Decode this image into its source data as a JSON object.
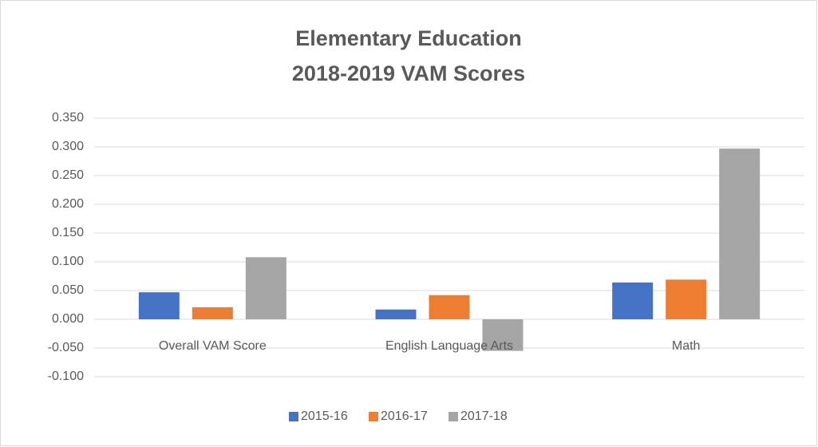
{
  "chart_data": {
    "type": "bar",
    "title": [
      "Elementary Education",
      "2018-2019 VAM Scores"
    ],
    "categories": [
      "Overall VAM Score",
      "English Language Arts",
      "Math"
    ],
    "series": [
      {
        "name": "2015-16",
        "color": "#4472c4",
        "values": [
          0.047,
          0.017,
          0.064
        ]
      },
      {
        "name": "2016-17",
        "color": "#ed7d31",
        "values": [
          0.021,
          0.042,
          0.069
        ]
      },
      {
        "name": "2017-18",
        "color": "#a5a5a5",
        "values": [
          0.108,
          -0.055,
          0.297
        ]
      }
    ],
    "ylim": [
      -0.1,
      0.35
    ],
    "yticks": [
      {
        "value": -0.1,
        "label": "-0.100"
      },
      {
        "value": -0.05,
        "label": "-0.050"
      },
      {
        "value": 0,
        "label": "0.000"
      },
      {
        "value": 0.05,
        "label": "0.050"
      },
      {
        "value": 0.1,
        "label": "0.100"
      },
      {
        "value": 0.15,
        "label": "0.150"
      },
      {
        "value": 0.2,
        "label": "0.200"
      },
      {
        "value": 0.25,
        "label": "0.250"
      },
      {
        "value": 0.3,
        "label": "0.300"
      },
      {
        "value": 0.35,
        "label": "0.350"
      }
    ],
    "grid": true,
    "legend": "bottom"
  }
}
